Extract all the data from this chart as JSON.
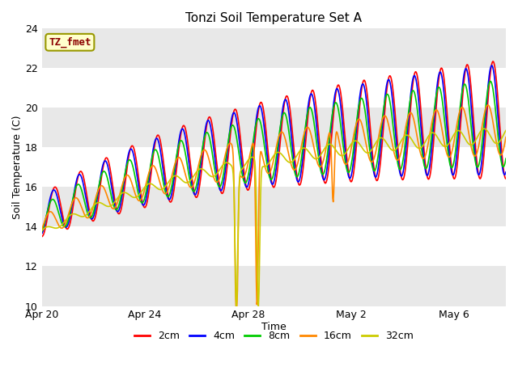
{
  "title": "Tonzi Soil Temperature Set A",
  "xlabel": "Time",
  "ylabel": "Soil Temperature (C)",
  "ylim": [
    10,
    24
  ],
  "yticks": [
    10,
    12,
    14,
    16,
    18,
    20,
    22,
    24
  ],
  "fig_bg_color": "#ffffff",
  "plot_bg_color": "#ffffff",
  "grid_color": "#cccccc",
  "label_box_text": "TZ_fmet",
  "label_box_facecolor": "#ffffcc",
  "label_box_edgecolor": "#999900",
  "label_box_textcolor": "#8B0000",
  "legend_entries": [
    "2cm",
    "4cm",
    "8cm",
    "16cm",
    "32cm"
  ],
  "line_colors": [
    "#ff0000",
    "#0000ff",
    "#00cc00",
    "#ff8800",
    "#cccc00"
  ],
  "line_widths": [
    1.2,
    1.2,
    1.2,
    1.2,
    1.2
  ],
  "x_tick_labels": [
    "Apr 20",
    "Apr 24",
    "Apr 28",
    "May 2",
    "May 6"
  ],
  "x_tick_positions": [
    0,
    4,
    8,
    12,
    16
  ],
  "n_days": 18,
  "n_per_day": 48
}
